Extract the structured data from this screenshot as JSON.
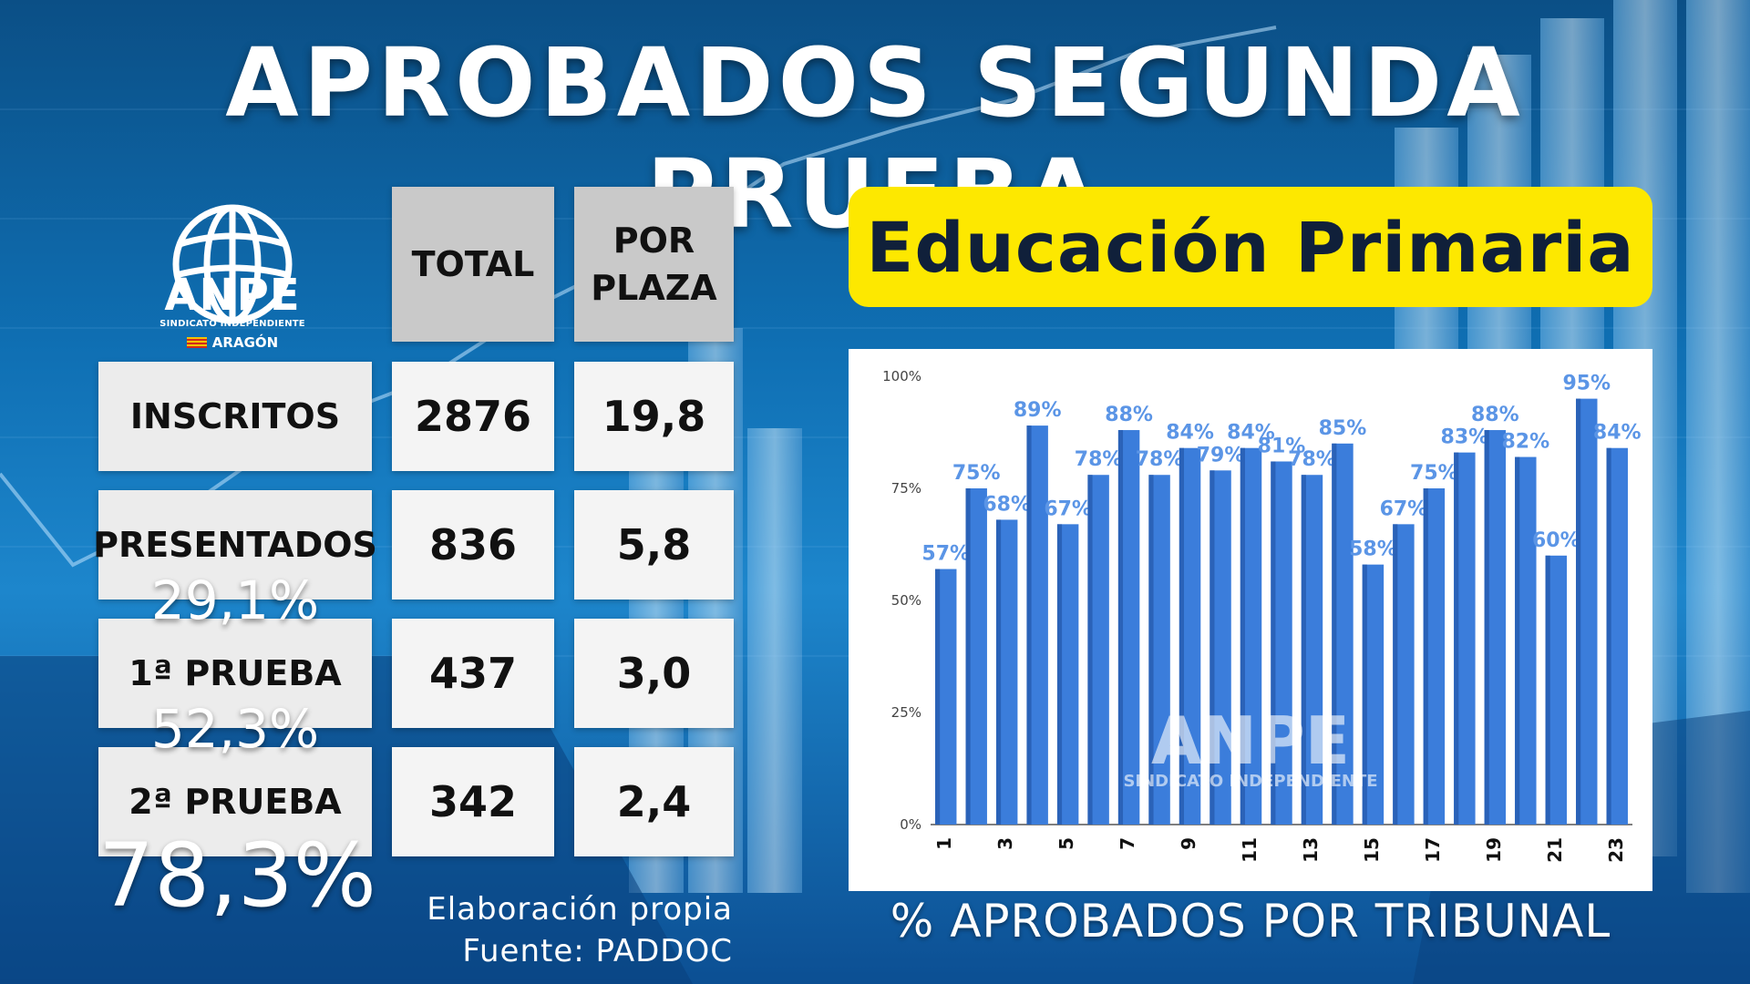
{
  "header": {
    "title": "APROBADOS SEGUNDA PRUEBA",
    "subtitle": "Educación Primaria"
  },
  "logo": {
    "brand": "ANPE",
    "tagline": "SINDICATO INDEPENDIENTE",
    "region": "ARAGÓN"
  },
  "table": {
    "columns": [
      "TOTAL",
      "POR\nPLAZA"
    ],
    "rows": [
      {
        "label": "INSCRITOS",
        "total": "2876",
        "per_place": "19,8"
      },
      {
        "label": "PRESENTADOS",
        "total": "836",
        "per_place": "5,8",
        "pct": "29,1%"
      },
      {
        "label": "1ª PRUEBA",
        "total": "437",
        "per_place": "3,0",
        "pct": "52,3%"
      },
      {
        "label": "2ª PRUEBA",
        "total": "342",
        "per_place": "2,4",
        "pct": "78,3%"
      }
    ]
  },
  "credits": {
    "line1": "Elaboración propia",
    "line2": "Fuente: PADDOC"
  },
  "chart_data": {
    "type": "bar",
    "title": "% APROBADOS POR TRIBUNAL",
    "categories": [
      "1",
      "2",
      "3",
      "4",
      "5",
      "6",
      "7",
      "8",
      "9",
      "10",
      "11",
      "12",
      "13",
      "14",
      "15",
      "16",
      "17",
      "18",
      "19",
      "20",
      "21",
      "22",
      "23"
    ],
    "values": [
      57,
      75,
      68,
      89,
      67,
      78,
      88,
      78,
      84,
      79,
      84,
      81,
      78,
      85,
      58,
      67,
      75,
      83,
      88,
      82,
      60,
      95,
      84
    ],
    "data_labels": [
      "57%",
      "75%",
      "68%",
      "89%",
      "67%",
      "78%",
      "88%",
      "78%",
      "84%",
      "79%",
      "84%",
      "81%",
      "78%",
      "85%",
      "58%",
      "67%",
      "75%",
      "83%",
      "88%",
      "82%",
      "60%",
      "95%",
      "84%"
    ],
    "x_tick_labels": [
      "1",
      "3",
      "5",
      "7",
      "9",
      "11",
      "13",
      "15",
      "17",
      "19",
      "21",
      "23"
    ],
    "y_ticks": [
      "0%",
      "25%",
      "50%",
      "75%",
      "100%"
    ],
    "ylim": [
      0,
      100
    ],
    "bar_color": "#3b7ddb",
    "label_color": "#5b95e6",
    "grid": false,
    "watermark": {
      "brand": "ANPE",
      "tagline": "SINDICATO INDEPENDIENTE"
    }
  },
  "colors": {
    "accent_yellow": "#fde800",
    "header_cell": "#c9c9c9",
    "label_cell": "#ececec",
    "value_cell": "#f4f4f4"
  }
}
